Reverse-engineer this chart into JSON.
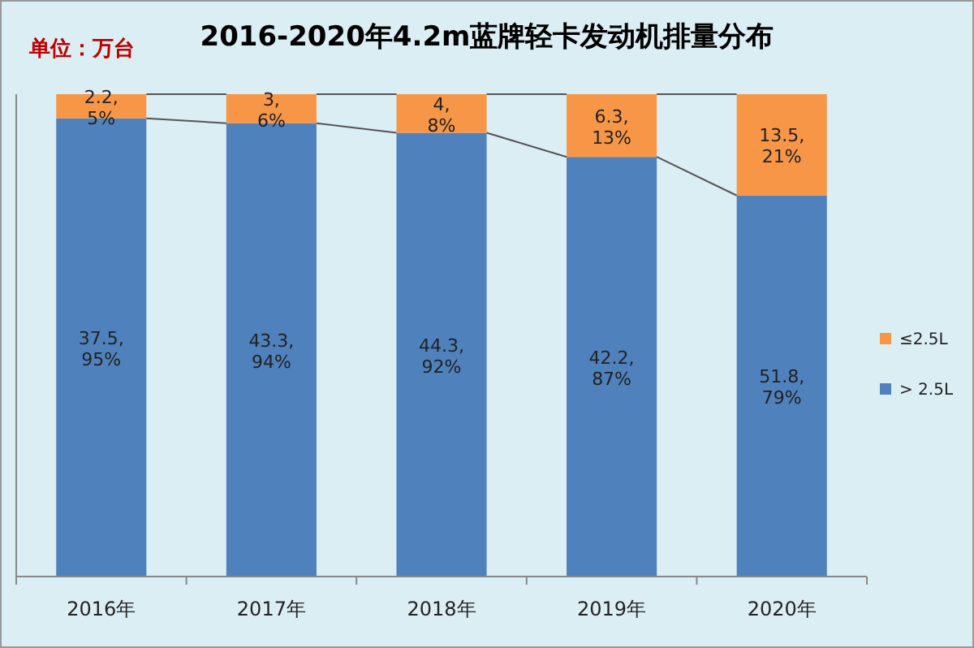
{
  "chart_data": {
    "type": "bar",
    "title": "2016-2020年4.2m蓝牌轻卡发动机排量分布",
    "annotations": [
      "单位：万台"
    ],
    "categories": [
      "2016年",
      "2017年",
      "2018年",
      "2019年",
      "2020年"
    ],
    "stacked": true,
    "ylim": [
      0,
      100
    ],
    "legend": "right",
    "series": [
      {
        "name": "> 2.5L",
        "color": "#4f81bd",
        "values": [
          95,
          94,
          92,
          87,
          79
        ],
        "value_labels": [
          "37.5, 95%",
          "43.3, 94%",
          "44.3, 92%",
          "42.2, 87%",
          "51.8, 79%"
        ]
      },
      {
        "name": "≤2.5L",
        "color": "#f79646",
        "values": [
          5,
          6,
          8,
          13,
          21
        ],
        "value_labels": [
          "2.2, 5%",
          "3, 6%",
          "4, 8%",
          "6.3, 13%",
          "13.5, 21%"
        ]
      }
    ]
  }
}
